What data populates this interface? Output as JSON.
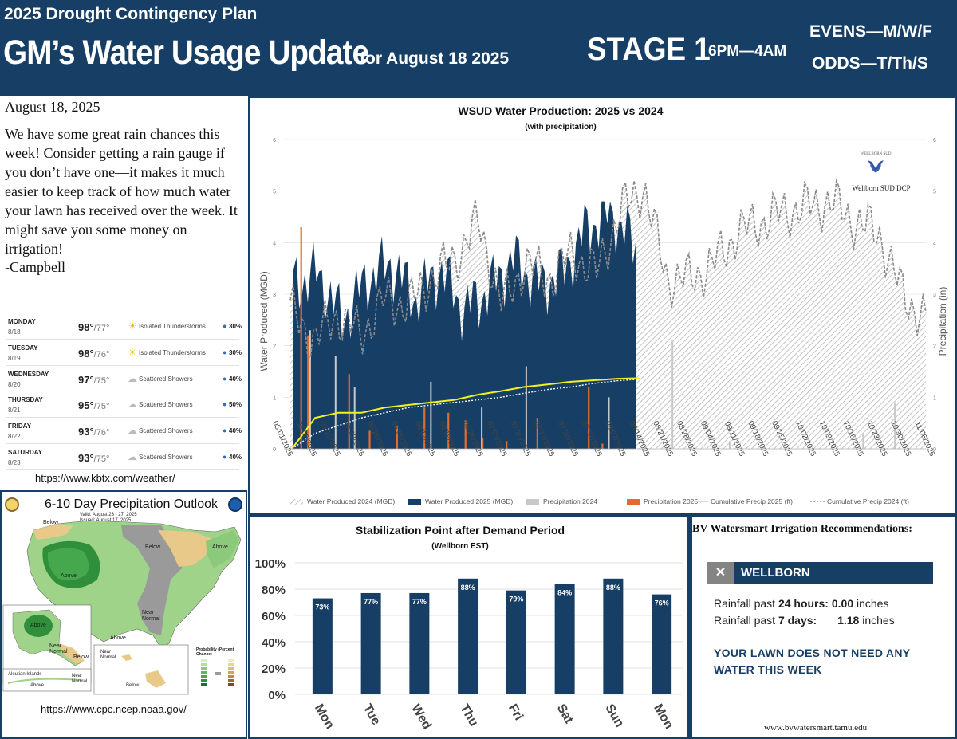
{
  "header": {
    "plan": "2025 Drought Contingency Plan",
    "title": "GM’s Water Usage Update",
    "date": "for August 18 2025",
    "stage": "STAGE 1",
    "hours": "6PM—4AM",
    "evens": "EVENS—M/W/F",
    "odds": "ODDS—T/Th/S"
  },
  "note": {
    "date": "August 18, 2025 —",
    "body": "We have some great rain chances this week! Consider getting a rain gauge if you don’t have one—it makes it much easier to keep track of how much water your lawn has received over the week. It might save you some money on irrigation!",
    "signature": "-Campbell"
  },
  "forecast": {
    "days": [
      {
        "day": "MONDAY",
        "date": "8/18",
        "high": "98°",
        "low": "/77°",
        "icon": "sun-storm-icon",
        "condition": "Isolated Thunderstorms",
        "precip": "30%"
      },
      {
        "day": "TUESDAY",
        "date": "8/19",
        "high": "98°",
        "low": "/76°",
        "icon": "sun-storm-icon",
        "condition": "Isolated Thunderstorms",
        "precip": "30%"
      },
      {
        "day": "WEDNESDAY",
        "date": "8/20",
        "high": "97°",
        "low": "/75°",
        "icon": "rain-cloud-icon",
        "condition": "Scattered Showers",
        "precip": "40%"
      },
      {
        "day": "THURSDAY",
        "date": "8/21",
        "high": "95°",
        "low": "/75°",
        "icon": "rain-cloud-icon",
        "condition": "Scattered Showers",
        "precip": "50%"
      },
      {
        "day": "FRIDAY",
        "date": "8/22",
        "high": "93°",
        "low": "/76°",
        "icon": "rain-cloud-icon",
        "condition": "Scattered Showers",
        "precip": "40%"
      },
      {
        "day": "SATURDAY",
        "date": "8/23",
        "high": "93°",
        "low": "/75°",
        "icon": "rain-cloud-icon",
        "condition": "Scattered Showers",
        "precip": "40%"
      }
    ],
    "url": "https://www.kbtx.com/weather/"
  },
  "outlook": {
    "title": "6-10 Day Precipitation Outlook",
    "valid": "Valid: August 23 - 27, 2025",
    "issued": "Issued: August 17, 2025",
    "labels": [
      "Below",
      "Below",
      "Above",
      "Above",
      "Near Normal",
      "Above",
      "Above",
      "Near Normal",
      "Below",
      "Aleutian Islands",
      "Above",
      "Near Normal",
      "Near Normal",
      "Below",
      "Probability (Percent Chance)"
    ],
    "url": "https://www.cpc.ncep.noaa.gov/",
    "colors": {
      "above": "#5cb85c",
      "above_strong": "#2f8f3a",
      "below": "#e8c98a",
      "near": "#9a9a9a"
    }
  },
  "chart_data": [
    {
      "type": "area",
      "title": "WSUD Water Production: 2025 vs 2024",
      "subtitle": "(with precipitation)",
      "ylabel": "Water Produced (MGD)",
      "y2label": "Precipitation (in)",
      "ylim": [
        0,
        6
      ],
      "y2lim": [
        0,
        6
      ],
      "yticks": [
        "0",
        "1",
        "2",
        "3",
        "4",
        "5",
        "6"
      ],
      "xticks": [
        "05/01/2025",
        "05/08/2025",
        "05/15/2025",
        "05/22/2025",
        "05/29/2025",
        "06/05/2025",
        "06/12/2025",
        "06/19/2025",
        "06/26/2025",
        "07/03/2025",
        "07/10/2025",
        "07/17/2025",
        "07/24/2025",
        "07/31/2025",
        "08/07/2025",
        "08/14/2025",
        "08/21/2025",
        "08/28/2025",
        "09/04/2025",
        "09/11/2025",
        "09/18/2025",
        "09/25/2025",
        "10/02/2025",
        "10/09/2025",
        "10/16/2025",
        "10/23/2025",
        "10/30/2025",
        "11/06/2025"
      ],
      "legend": [
        "Water Produced 2024 (MGD)",
        "Water Produced 2025 (MGD)",
        "Precipitation 2024",
        "Precipitation 2025",
        "Cumulative Precip 2025 (ft)",
        "Cumulative Precip 2024 (ft)"
      ],
      "legend_position": "bottom",
      "grid": true,
      "logo_text": "Wellborn SUD DCP",
      "logo_small": "WELLBORN SUD",
      "colors": {
        "prod2025": "#173f66",
        "prod2024": "#bdbdbd",
        "precip2024": "#c8c8c8",
        "precip2025": "#e46c2a",
        "cum2025": "#f2f21b",
        "cum2024": "#888888"
      },
      "weekly_2025": [
        3.2,
        3.4,
        2.5,
        3.3,
        3.6,
        2.9,
        3.5,
        2.7,
        3.1,
        3.7,
        3.2,
        3.4,
        4.3,
        4.6,
        3.9
      ],
      "weekly_2024": [
        2.7,
        2.1,
        2.6,
        2.2,
        2.9,
        2.8,
        3.3,
        3.7,
        4.4,
        2.8,
        3.6,
        3.3,
        3.8,
        3.4,
        4.6,
        5.1,
        3.3,
        3.3,
        3.6,
        4.2,
        4.4,
        4.6,
        4.7,
        4.8,
        4.4,
        4.2,
        3.0,
        2.5
      ],
      "cumulative_2025_ft": [
        0.0,
        0.6,
        0.7,
        0.7,
        0.8,
        0.85,
        0.9,
        0.95,
        1.05,
        1.12,
        1.2,
        1.25,
        1.3,
        1.33,
        1.36,
        1.37
      ],
      "cumulative_2024_ft": [
        0.0,
        0.3,
        0.45,
        0.6,
        0.7,
        0.8,
        0.85,
        0.9,
        0.95,
        1.0,
        1.08,
        1.15,
        1.2,
        1.27,
        1.32,
        1.35
      ]
    },
    {
      "type": "bar",
      "title": "Stabilization Point after Demand Period",
      "subtitle": "(Wellborn EST)",
      "categories": [
        "Mon",
        "Tue",
        "Wed",
        "Thu",
        "Fri",
        "Sat",
        "Sun",
        "Mon"
      ],
      "values": [
        73,
        77,
        77,
        88,
        79,
        84,
        88,
        76
      ],
      "value_labels": [
        "73%",
        "77%",
        "77%",
        "88%",
        "79%",
        "84%",
        "88%",
        "76%"
      ],
      "ylim": [
        0,
        100
      ],
      "yticks": [
        "0%",
        "20%",
        "40%",
        "60%",
        "80%",
        "100%"
      ],
      "bar_color": "#173f66",
      "grid": true
    }
  ],
  "watersmart": {
    "title": "BV Watersmart Irrigation Recommendations:",
    "location": "WELLBORN",
    "close_glyph": "✕",
    "rain24_label": "Rainfall past",
    "rain24_period": "24 hours",
    "rain24_value": "0.00",
    "rain7_label": "Rainfall past",
    "rain7_period": "7 days",
    "rain7_value": "1.18",
    "unit": "inches",
    "message": "YOUR LAWN DOES NOT NEED ANY WATER THIS WEEK",
    "url": "www.bvwatersmart.tamu.edu"
  }
}
